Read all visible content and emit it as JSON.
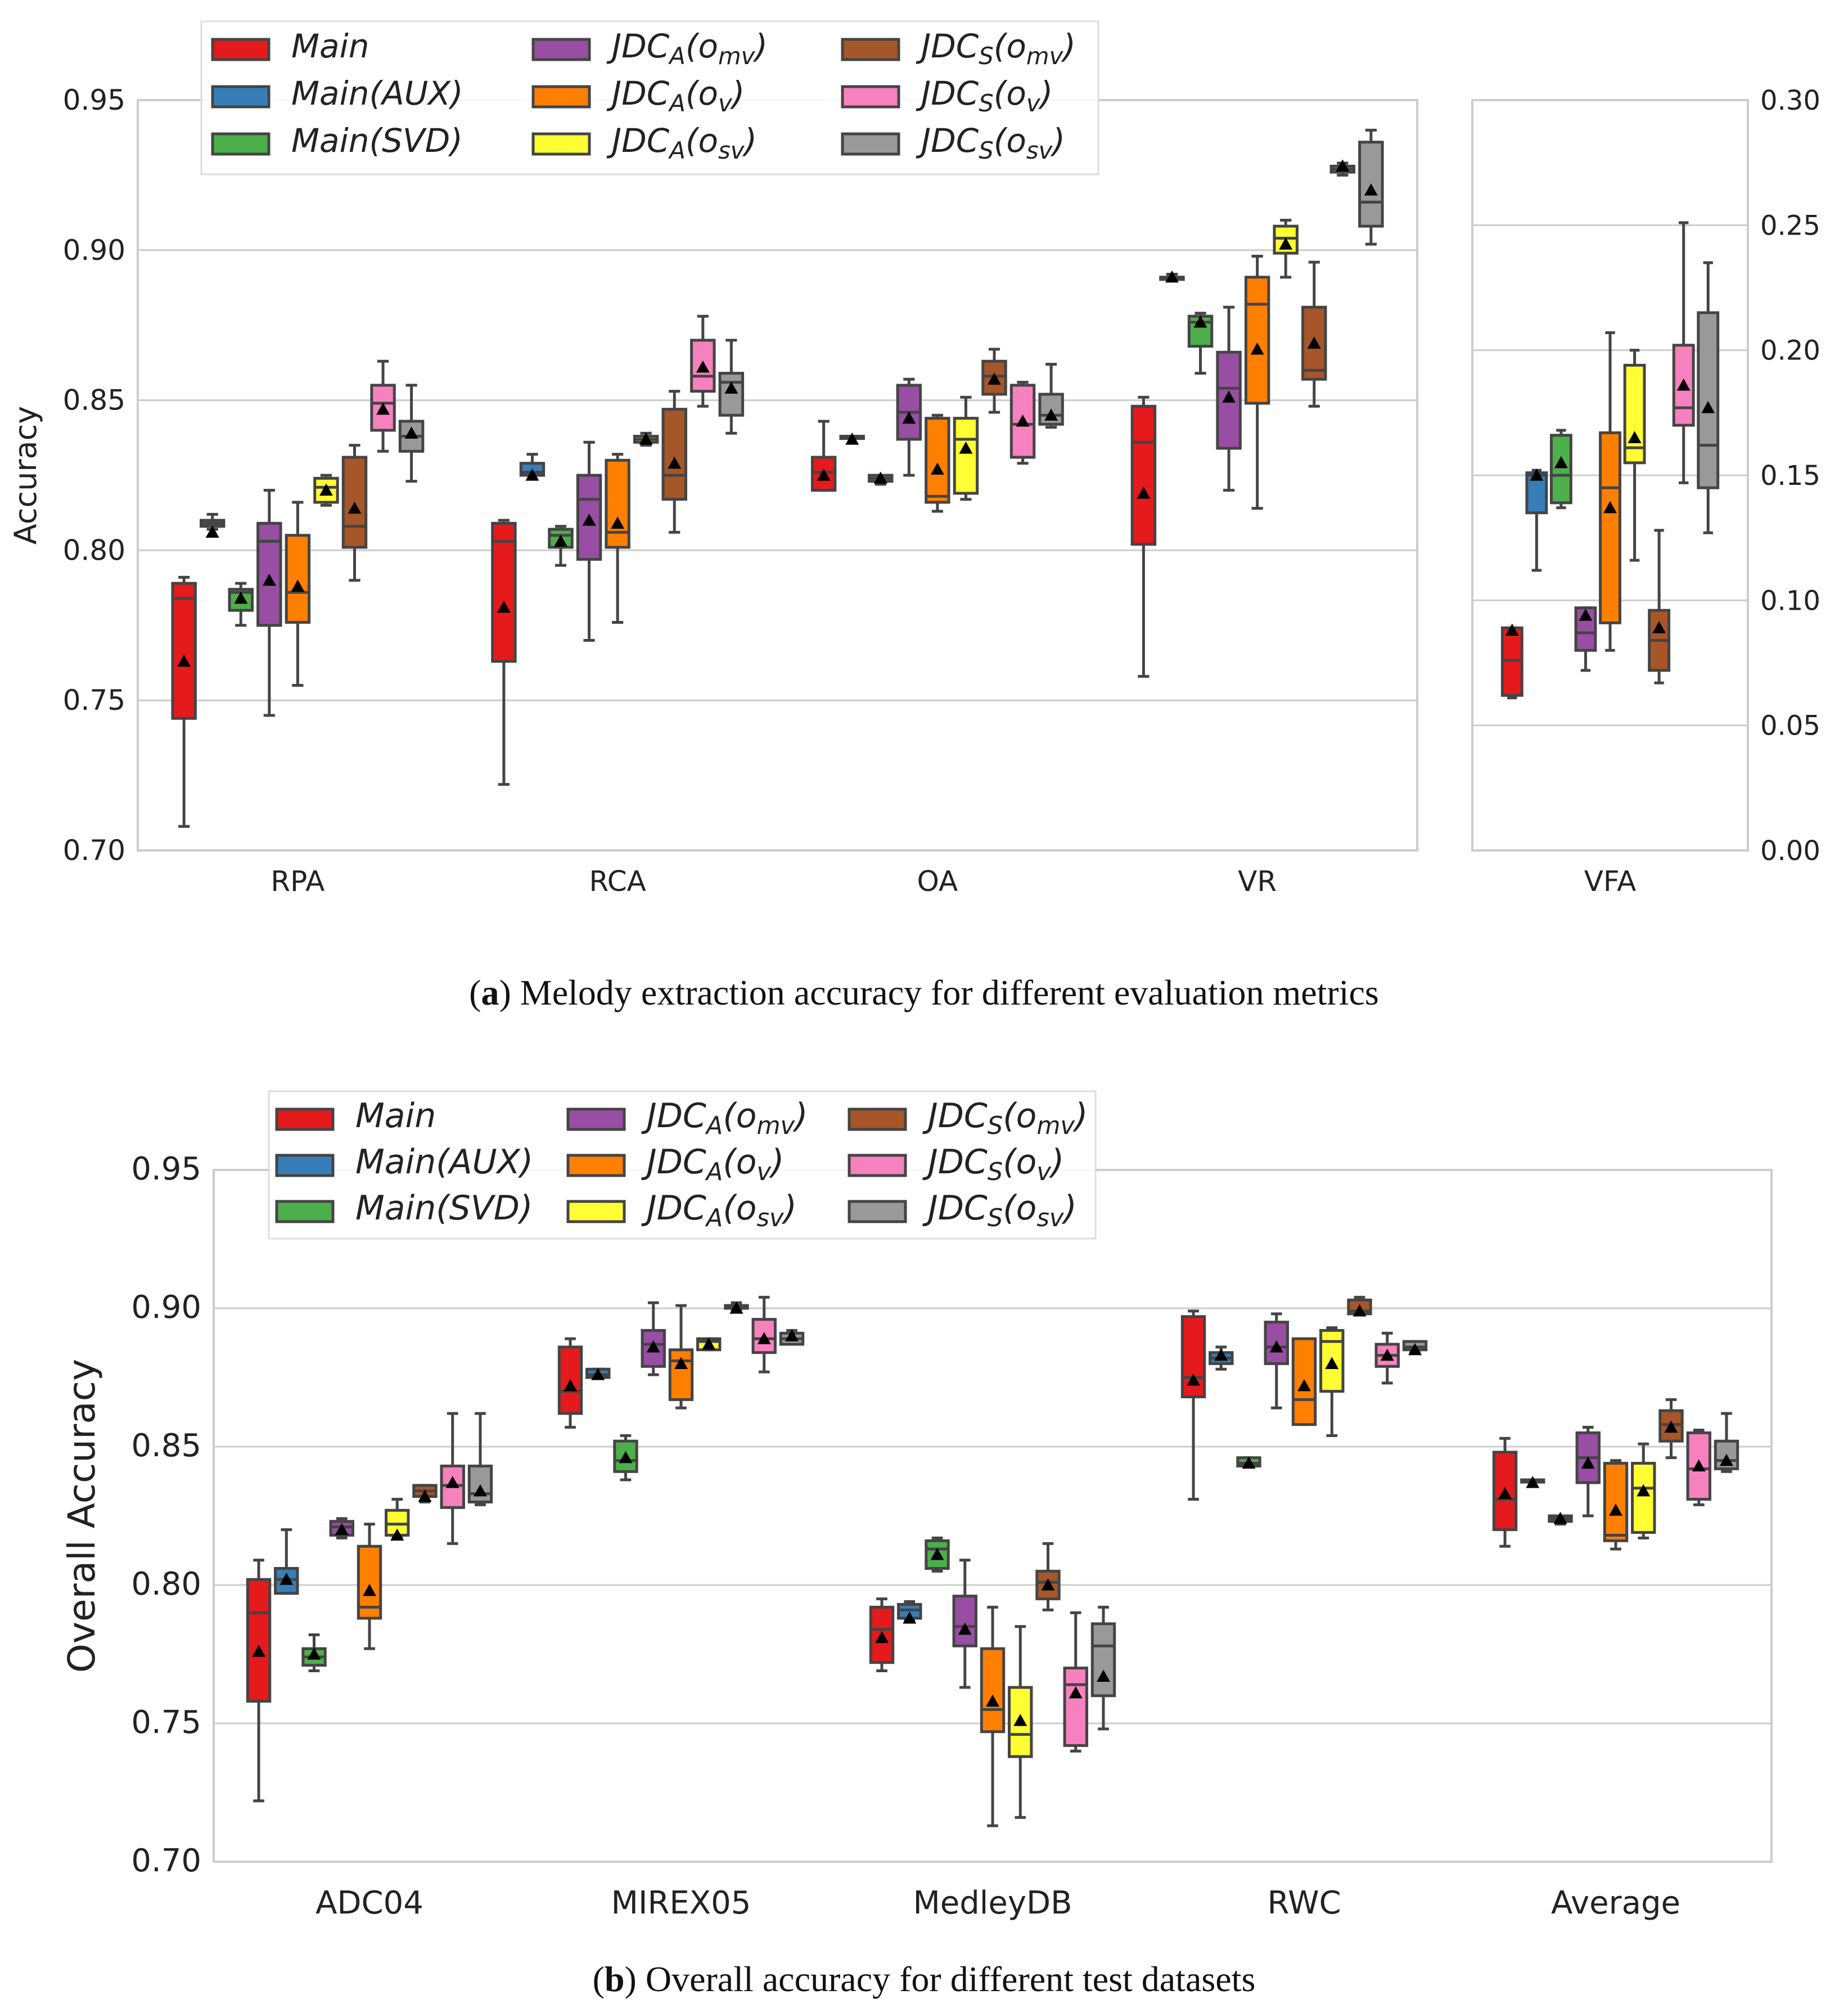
{
  "series_names": [
    "Main",
    "Main(AUX)",
    "Main(SVD)",
    "JDC_A(o_mv)",
    "JDC_A(o_v)",
    "JDC_A(o_sv)",
    "JDC_S(o_mv)",
    "JDC_S(o_v)",
    "JDC_S(o_sv)"
  ],
  "colors": [
    "#e41a1c",
    "#377eb8",
    "#4daf4a",
    "#984ea3",
    "#ff7f00",
    "#ffff33",
    "#a65628",
    "#f781bf",
    "#999999"
  ],
  "captions": {
    "a_label": "a",
    "a_text": " Melody extraction accuracy for different evaluation metrics",
    "b_label": "b",
    "b_text": " Overall accuracy for different test datasets"
  },
  "chart_data": [
    {
      "type": "box",
      "id": "a-main",
      "ylabel": "Accuracy",
      "ylim": [
        0.7,
        0.95
      ],
      "yticks": [
        "0.70",
        "0.75",
        "0.80",
        "0.85",
        "0.90",
        "0.95"
      ],
      "grid": true,
      "legend_position": "top-left",
      "categories": [
        "RPA",
        "RCA",
        "OA",
        "VR"
      ],
      "boxes": {
        "RPA": [
          [
            0.708,
            0.744,
            0.784,
            0.789,
            0.791,
            0.763
          ],
          [
            0.807,
            0.808,
            0.809,
            0.81,
            0.812,
            0.806
          ],
          [
            0.775,
            0.78,
            0.786,
            0.787,
            0.789,
            0.784
          ],
          [
            0.745,
            0.775,
            0.803,
            0.809,
            0.82,
            0.79
          ],
          [
            0.755,
            0.776,
            0.786,
            0.805,
            0.816,
            0.788
          ],
          [
            0.815,
            0.816,
            0.821,
            0.824,
            0.825,
            0.82
          ],
          [
            0.79,
            0.801,
            0.808,
            0.831,
            0.835,
            0.814
          ],
          [
            0.833,
            0.84,
            0.849,
            0.855,
            0.863,
            0.847
          ],
          [
            0.823,
            0.833,
            0.838,
            0.843,
            0.855,
            0.839
          ]
        ],
        "RCA": [
          [
            0.722,
            0.763,
            0.803,
            0.809,
            0.81,
            0.781
          ],
          [
            0.825,
            0.825,
            0.826,
            0.829,
            0.832,
            0.825
          ],
          [
            0.795,
            0.801,
            0.805,
            0.807,
            0.808,
            0.803
          ],
          [
            0.77,
            0.797,
            0.817,
            0.825,
            0.836,
            0.81
          ],
          [
            0.776,
            0.801,
            0.806,
            0.83,
            0.832,
            0.809
          ],
          [
            0.835,
            0.836,
            0.837,
            0.838,
            0.839,
            0.837
          ],
          [
            0.806,
            0.817,
            0.825,
            0.847,
            0.853,
            0.829
          ],
          [
            0.848,
            0.853,
            0.858,
            0.87,
            0.878,
            0.861
          ],
          [
            0.839,
            0.845,
            0.856,
            0.859,
            0.87,
            0.854
          ]
        ],
        "OA": [
          [
            0.82,
            0.82,
            0.826,
            0.831,
            0.843,
            0.825
          ],
          [
            0.838,
            0.838,
            0.838,
            0.838,
            0.838,
            0.837
          ],
          [
            0.822,
            0.823,
            0.824,
            0.825,
            0.825,
            0.824
          ],
          [
            0.825,
            0.837,
            0.846,
            0.855,
            0.857,
            0.844
          ],
          [
            0.813,
            0.816,
            0.818,
            0.844,
            0.845,
            0.827
          ],
          [
            0.817,
            0.819,
            0.837,
            0.844,
            0.851,
            0.834
          ],
          [
            0.846,
            0.852,
            0.858,
            0.863,
            0.867,
            0.857
          ],
          [
            0.829,
            0.831,
            0.842,
            0.855,
            0.856,
            0.843
          ],
          [
            0.841,
            0.842,
            0.845,
            0.852,
            0.862,
            0.845
          ]
        ],
        "VR": [
          [
            0.758,
            0.802,
            0.836,
            0.848,
            0.851,
            0.819
          ],
          [
            0.891,
            0.891,
            0.891,
            0.891,
            0.892,
            0.891
          ],
          [
            0.859,
            0.868,
            0.876,
            0.878,
            0.879,
            0.876
          ],
          [
            0.82,
            0.834,
            0.854,
            0.866,
            0.881,
            0.851
          ],
          [
            0.814,
            0.849,
            0.882,
            0.891,
            0.898,
            0.867
          ],
          [
            0.891,
            0.899,
            0.904,
            0.908,
            0.91,
            0.902
          ],
          [
            0.848,
            0.857,
            0.86,
            0.881,
            0.896,
            0.869
          ],
          [
            0.925,
            0.926,
            0.927,
            0.928,
            0.929,
            0.928
          ],
          [
            0.902,
            0.908,
            0.916,
            0.936,
            0.94,
            0.92
          ]
        ]
      }
    },
    {
      "type": "box",
      "id": "a-vfa",
      "ylim": [
        0.0,
        0.3
      ],
      "yticks": [
        "0.00",
        "0.05",
        "0.10",
        "0.15",
        "0.20",
        "0.25",
        "0.30"
      ],
      "grid": true,
      "categories": [
        "VFA"
      ],
      "boxes": {
        "VFA": [
          [
            0.061,
            0.062,
            0.076,
            0.089,
            0.089,
            0.088
          ],
          [
            0.112,
            0.135,
            0.15,
            0.151,
            0.152,
            0.15
          ],
          [
            0.137,
            0.139,
            0.15,
            0.166,
            0.168,
            0.155
          ],
          [
            0.072,
            0.08,
            0.087,
            0.097,
            0.097,
            0.094
          ],
          [
            0.08,
            0.091,
            0.145,
            0.167,
            0.207,
            0.137
          ],
          [
            0.116,
            0.155,
            0.161,
            0.194,
            0.2,
            0.165
          ],
          [
            0.067,
            0.072,
            0.084,
            0.096,
            0.128,
            0.089
          ],
          [
            0.147,
            0.17,
            0.177,
            0.202,
            0.251,
            0.186
          ],
          [
            0.127,
            0.145,
            0.162,
            0.215,
            0.235,
            0.177
          ]
        ]
      }
    },
    {
      "type": "box",
      "id": "b-main",
      "ylabel": "Overall Accuracy",
      "ylim": [
        0.7,
        0.95
      ],
      "yticks": [
        "0.70",
        "0.75",
        "0.80",
        "0.85",
        "0.90",
        "0.95"
      ],
      "grid": true,
      "legend_position": "top-left",
      "categories": [
        "ADC04",
        "MIREX05",
        "MedleyDB",
        "RWC",
        "Average"
      ],
      "boxes": {
        "ADC04": [
          [
            0.722,
            0.758,
            0.79,
            0.802,
            0.809,
            0.776
          ],
          [
            0.797,
            0.797,
            0.802,
            0.806,
            0.82,
            0.802
          ],
          [
            0.769,
            0.771,
            0.774,
            0.777,
            0.782,
            0.775
          ],
          [
            0.817,
            0.818,
            0.821,
            0.823,
            0.824,
            0.82
          ],
          [
            0.777,
            0.788,
            0.792,
            0.814,
            0.822,
            0.798
          ],
          [
            0.817,
            0.818,
            0.822,
            0.827,
            0.831,
            0.818
          ],
          [
            0.83,
            0.832,
            0.834,
            0.836,
            0.836,
            0.832
          ],
          [
            0.815,
            0.828,
            0.836,
            0.843,
            0.862,
            0.837
          ],
          [
            0.829,
            0.83,
            0.833,
            0.843,
            0.862,
            0.834
          ]
        ],
        "MIREX05": [
          [
            0.857,
            0.862,
            0.87,
            0.886,
            0.889,
            0.872
          ],
          [
            0.875,
            0.875,
            0.876,
            0.878,
            0.878,
            0.876
          ],
          [
            0.838,
            0.841,
            0.845,
            0.852,
            0.854,
            0.846
          ],
          [
            0.876,
            0.879,
            0.887,
            0.892,
            0.902,
            0.886
          ],
          [
            0.864,
            0.867,
            0.881,
            0.885,
            0.901,
            0.88
          ],
          [
            0.885,
            0.885,
            0.888,
            0.889,
            0.889,
            0.887
          ],
          [
            0.899,
            0.9,
            0.901,
            0.901,
            0.902,
            0.9
          ],
          [
            0.877,
            0.884,
            0.889,
            0.896,
            0.904,
            0.889
          ],
          [
            0.887,
            0.887,
            0.889,
            0.891,
            0.892,
            0.89
          ]
        ],
        "MedleyDB": [
          [
            0.769,
            0.772,
            0.784,
            0.792,
            0.795,
            0.781
          ],
          [
            0.787,
            0.788,
            0.791,
            0.793,
            0.794,
            0.788
          ],
          [
            0.805,
            0.806,
            0.813,
            0.816,
            0.817,
            0.811
          ],
          [
            0.763,
            0.778,
            0.785,
            0.796,
            0.809,
            0.784
          ],
          [
            0.713,
            0.747,
            0.755,
            0.777,
            0.792,
            0.758
          ],
          [
            0.716,
            0.738,
            0.746,
            0.763,
            0.785,
            0.751
          ],
          [
            0.791,
            0.795,
            0.801,
            0.805,
            0.815,
            0.8
          ],
          [
            0.74,
            0.742,
            0.764,
            0.77,
            0.79,
            0.761
          ],
          [
            0.748,
            0.76,
            0.778,
            0.786,
            0.792,
            0.767
          ]
        ],
        "RWC": [
          [
            0.831,
            0.868,
            0.875,
            0.897,
            0.899,
            0.874
          ],
          [
            0.878,
            0.88,
            0.882,
            0.884,
            0.886,
            0.883
          ],
          [
            0.843,
            0.843,
            0.844,
            0.846,
            0.846,
            0.844
          ],
          [
            0.864,
            0.88,
            0.886,
            0.895,
            0.898,
            0.886
          ],
          [
            0.858,
            0.858,
            0.867,
            0.889,
            0.889,
            0.872
          ],
          [
            0.854,
            0.87,
            0.888,
            0.892,
            0.893,
            0.88
          ],
          [
            0.898,
            0.898,
            0.899,
            0.903,
            0.904,
            0.899
          ],
          [
            0.873,
            0.879,
            0.883,
            0.887,
            0.891,
            0.883
          ],
          [
            0.884,
            0.885,
            0.886,
            0.888,
            0.888,
            0.885
          ]
        ],
        "Average": [
          [
            0.814,
            0.82,
            0.831,
            0.848,
            0.853,
            0.833
          ],
          [
            0.838,
            0.838,
            0.838,
            0.838,
            0.838,
            0.837
          ],
          [
            0.822,
            0.823,
            0.824,
            0.825,
            0.825,
            0.824
          ],
          [
            0.825,
            0.837,
            0.846,
            0.855,
            0.857,
            0.844
          ],
          [
            0.813,
            0.816,
            0.818,
            0.844,
            0.845,
            0.827
          ],
          [
            0.817,
            0.819,
            0.835,
            0.844,
            0.851,
            0.834
          ],
          [
            0.846,
            0.852,
            0.858,
            0.863,
            0.867,
            0.857
          ],
          [
            0.829,
            0.831,
            0.842,
            0.855,
            0.856,
            0.843
          ],
          [
            0.841,
            0.842,
            0.845,
            0.852,
            0.862,
            0.845
          ]
        ]
      }
    }
  ]
}
